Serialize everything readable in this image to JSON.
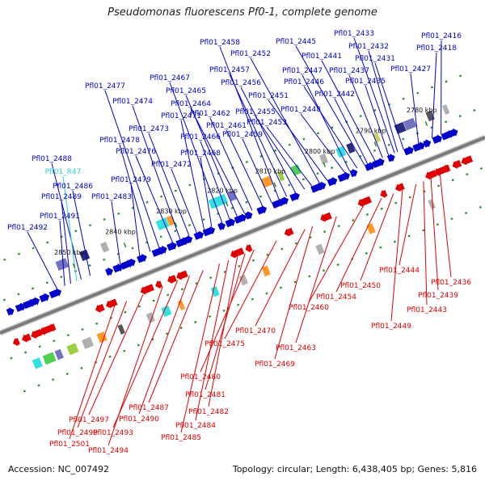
{
  "header": {
    "title": "Pseudomonas fluorescens Pf0-1, complete genome"
  },
  "footer": {
    "accession": "Accession: NC_007492",
    "summary": "Topology: circular; Length: 6,438,405 bp; Genes: 5,816"
  },
  "colors": {
    "forward": "#0000cc",
    "reverse": "#e00000",
    "trna": "#33cccc",
    "spine": "#7a7a7a",
    "ticks": "#2e8b2e"
  },
  "ruler": [
    {
      "label": "2780 kbp",
      "kbp": 2780
    },
    {
      "label": "2790 kbp",
      "kbp": 2790
    },
    {
      "label": "2800 kbp",
      "kbp": 2800
    },
    {
      "label": "2810 kbp",
      "kbp": 2810
    },
    {
      "label": "2820 kbp",
      "kbp": 2820
    },
    {
      "label": "2830 kbp",
      "kbp": 2830
    },
    {
      "label": "2840 kbp",
      "kbp": 2840
    },
    {
      "label": "2850 kbp",
      "kbp": 2850
    }
  ],
  "forward_genes": [
    {
      "name": "Pfl01_2416",
      "kind": "cds"
    },
    {
      "name": "Pfl01_2418",
      "kind": "cds"
    },
    {
      "name": "Pfl01_2427",
      "kind": "cds"
    },
    {
      "name": "Pfl01_2431",
      "kind": "cds"
    },
    {
      "name": "Pfl01_2432",
      "kind": "cds"
    },
    {
      "name": "Pfl01_2433",
      "kind": "cds"
    },
    {
      "name": "Pfl01_2435",
      "kind": "cds"
    },
    {
      "name": "Pfl01_2437",
      "kind": "cds"
    },
    {
      "name": "Pfl01_2441",
      "kind": "cds"
    },
    {
      "name": "Pfl01_2442",
      "kind": "cds"
    },
    {
      "name": "Pfl01_2445",
      "kind": "cds"
    },
    {
      "name": "Pfl01_2446",
      "kind": "cds"
    },
    {
      "name": "Pfl01_2447",
      "kind": "cds"
    },
    {
      "name": "Pfl01_2448",
      "kind": "cds"
    },
    {
      "name": "Pfl01_2451",
      "kind": "cds"
    },
    {
      "name": "Pfl01_2452",
      "kind": "cds"
    },
    {
      "name": "Pfl01_2453",
      "kind": "cds"
    },
    {
      "name": "Pfl01_2455",
      "kind": "cds"
    },
    {
      "name": "Pfl01_2456",
      "kind": "cds"
    },
    {
      "name": "Pfl01_2457",
      "kind": "cds"
    },
    {
      "name": "Pfl01_2458",
      "kind": "cds"
    },
    {
      "name": "Pfl01_2459",
      "kind": "cds"
    },
    {
      "name": "Pfl01_2461",
      "kind": "cds"
    },
    {
      "name": "Pfl01_2462",
      "kind": "cds"
    },
    {
      "name": "Pfl01_2464",
      "kind": "cds"
    },
    {
      "name": "Pfl01_2465",
      "kind": "cds"
    },
    {
      "name": "Pfl01_2466",
      "kind": "cds"
    },
    {
      "name": "Pfl01_2467",
      "kind": "cds"
    },
    {
      "name": "Pfl01_2468",
      "kind": "cds"
    },
    {
      "name": "Pfl01_2471",
      "kind": "cds"
    },
    {
      "name": "Pfl01_2472",
      "kind": "cds"
    },
    {
      "name": "Pfl01_2473",
      "kind": "cds"
    },
    {
      "name": "Pfl01_2474",
      "kind": "cds"
    },
    {
      "name": "Pfl01_2476",
      "kind": "cds"
    },
    {
      "name": "Pfl01_2477",
      "kind": "cds"
    },
    {
      "name": "Pfl01_2478",
      "kind": "cds"
    },
    {
      "name": "Pfl01_2479",
      "kind": "cds"
    },
    {
      "name": "Pfl01_2483",
      "kind": "cds"
    },
    {
      "name": "Pfl01_2486",
      "kind": "cds"
    },
    {
      "name": "Pfl01_2488",
      "kind": "cds"
    },
    {
      "name": "Pfl01_R47",
      "kind": "trna"
    },
    {
      "name": "Pfl01_2489",
      "kind": "cds"
    },
    {
      "name": "Pfl01_2491",
      "kind": "cds"
    },
    {
      "name": "Pfl01_2492",
      "kind": "cds"
    }
  ],
  "reverse_genes": [
    {
      "name": "Pfl01_2436"
    },
    {
      "name": "Pfl01_2439"
    },
    {
      "name": "Pfl01_2443"
    },
    {
      "name": "Pfl01_2444"
    },
    {
      "name": "Pfl01_2449"
    },
    {
      "name": "Pfl01_2450"
    },
    {
      "name": "Pfl01_2454"
    },
    {
      "name": "Pfl01_2460"
    },
    {
      "name": "Pfl01_2463"
    },
    {
      "name": "Pfl01_2469"
    },
    {
      "name": "Pfl01_2470"
    },
    {
      "name": "Pfl01_2475"
    },
    {
      "name": "Pfl01_2480"
    },
    {
      "name": "Pfl01_2481"
    },
    {
      "name": "Pfl01_2482"
    },
    {
      "name": "Pfl01_2484"
    },
    {
      "name": "Pfl01_2485"
    },
    {
      "name": "Pfl01_2487"
    },
    {
      "name": "Pfl01_2490"
    },
    {
      "name": "Pfl01_2493"
    },
    {
      "name": "Pfl01_2494"
    },
    {
      "name": "Pfl01_2497"
    },
    {
      "name": "Pfl01_2499"
    },
    {
      "name": "Pfl01_2501"
    }
  ]
}
